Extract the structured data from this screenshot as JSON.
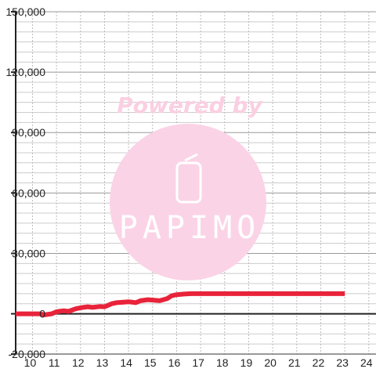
{
  "watermark": {
    "headline": "Powered by",
    "brand": "PAPIMO",
    "color": "#fbd3e6",
    "text_color": "#fbcfe2"
  },
  "chart_data": {
    "type": "line",
    "title": "",
    "xlabel": "",
    "ylabel": "",
    "grid": true,
    "xlim": [
      9.3,
      24.3
    ],
    "ylim": [
      -20000,
      150000
    ],
    "x_ticks": [
      10,
      11,
      12,
      13,
      14,
      15,
      16,
      17,
      18,
      19,
      20,
      21,
      22,
      23,
      24
    ],
    "x_tick_labels": [
      "10",
      "11",
      "12",
      "13",
      "14",
      "15",
      "16",
      "17",
      "18",
      "19",
      "20",
      "21",
      "22",
      "23",
      "24"
    ],
    "y_ticks": [
      -20000,
      0,
      30000,
      60000,
      90000,
      120000,
      150000
    ],
    "y_tick_labels": [
      "-20,000",
      "0",
      "30,000",
      "60,000",
      "90,000",
      "120,000",
      "150,000"
    ],
    "series": [
      {
        "color": "#e8233a",
        "x": [
          9.3,
          10.0,
          10.3,
          10.5,
          10.8,
          11.0,
          11.3,
          11.5,
          11.8,
          12.0,
          12.3,
          12.5,
          12.8,
          13.0,
          13.3,
          13.5,
          13.8,
          14.0,
          14.3,
          14.5,
          14.8,
          15.0,
          15.3,
          15.6,
          15.8,
          16.0,
          16.3,
          16.6,
          17.0,
          18.0,
          19.0,
          20.0,
          21.0,
          22.0,
          23.0
        ],
        "y": [
          0,
          0,
          0,
          -500,
          0,
          1000,
          1500,
          1200,
          2500,
          3000,
          3500,
          3200,
          3600,
          3500,
          5000,
          5500,
          5800,
          6000,
          5500,
          6500,
          7000,
          6800,
          6500,
          7500,
          9000,
          9500,
          9800,
          10000,
          10000,
          10000,
          10000,
          10000,
          10000,
          10000,
          10000
        ]
      }
    ]
  }
}
